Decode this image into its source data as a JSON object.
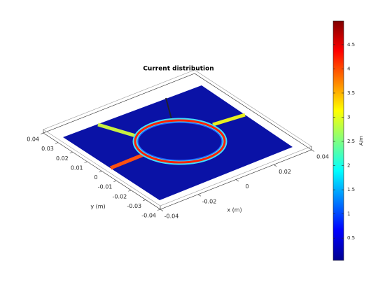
{
  "chart_data": {
    "type": "surface",
    "title": "Current distribution",
    "xlabel": "x (m)",
    "ylabel": "y (m)",
    "xlim": [
      -0.04,
      0.04
    ],
    "xticks": [
      -0.04,
      -0.02,
      0,
      0.02,
      0.04
    ],
    "ylim": [
      -0.04,
      0.04
    ],
    "yticks": [
      -0.04,
      -0.03,
      -0.02,
      -0.01,
      0,
      0.01,
      0.02,
      0.03,
      0.04
    ],
    "colorbar": {
      "label": "A/m",
      "colormap": "jet",
      "clim": [
        0.04,
        4.99
      ],
      "ticks": [
        0.5,
        1,
        1.5,
        2,
        2.5,
        3,
        3.5,
        4,
        4.5
      ]
    }
  }
}
